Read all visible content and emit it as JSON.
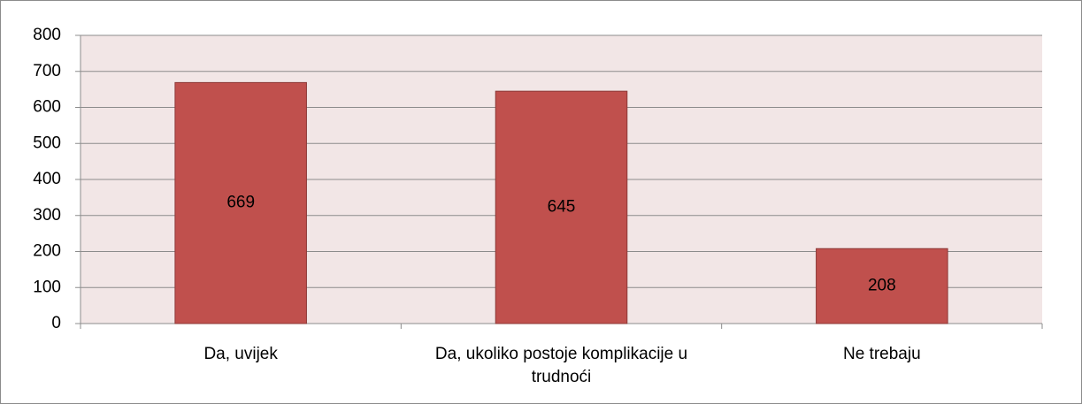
{
  "chart_data": {
    "type": "bar",
    "categories": [
      "Da, uvijek",
      "Da, ukoliko postoje komplikacije u trudnoći",
      "Ne trebaju"
    ],
    "values": [
      669,
      645,
      208
    ],
    "color": "#c0504d",
    "ylim": [
      0,
      800
    ],
    "yticks": [
      0,
      100,
      200,
      300,
      400,
      500,
      600,
      700,
      800
    ],
    "grid": true
  }
}
